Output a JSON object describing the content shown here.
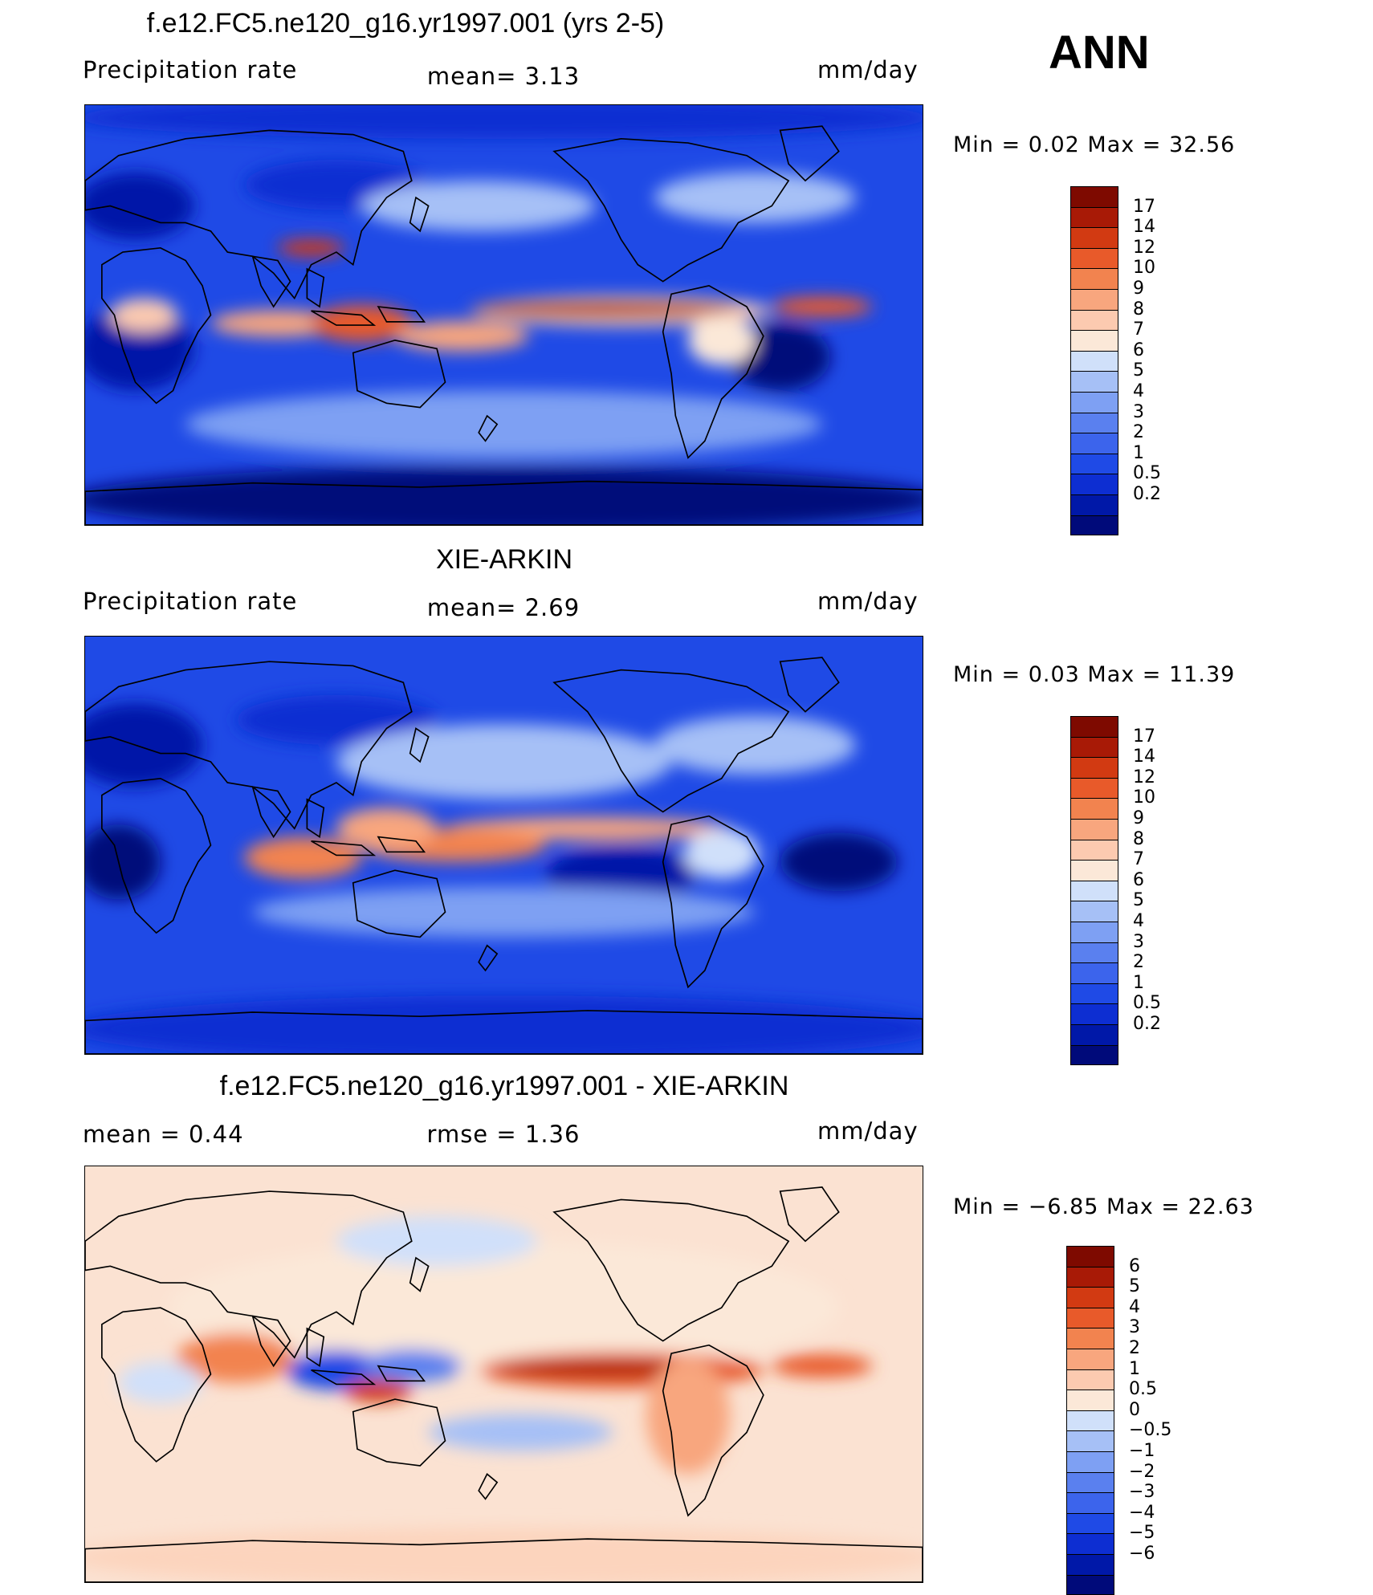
{
  "season": "ANN",
  "colors": {
    "abs": [
      "#000a7a",
      "#0018a8",
      "#0d2ed2",
      "#1f4ae6",
      "#3c64ec",
      "#5a80ef",
      "#7ea0f3",
      "#a6c0f6",
      "#d0e0fa",
      "#fbe8d8",
      "#fccab0",
      "#f8a67e",
      "#f2834f",
      "#e85a2a",
      "#d23a12",
      "#a81a06",
      "#7e0a00"
    ],
    "diff": [
      "#000a7a",
      "#0018a8",
      "#0d2ed2",
      "#1f4ae6",
      "#3c64ec",
      "#5a80ef",
      "#7ea0f3",
      "#a6c0f6",
      "#d0e0fa",
      "#fbe8d8",
      "#fccab0",
      "#f8a67e",
      "#f2834f",
      "#e85a2a",
      "#d23a12",
      "#a81a06",
      "#7e0a00"
    ]
  },
  "panels": [
    {
      "title": "f.e12.FC5.ne120_g16.yr1997.001 (yrs 2-5)",
      "left_label": "Precipitation  rate",
      "mid_label": "mean=    3.13",
      "units": "mm/day",
      "minmax": "Min  =     0.02  Max  =     32.56",
      "colorbar": "abs"
    },
    {
      "title": "XIE-ARKIN",
      "left_label": "Precipitation  rate",
      "mid_label": "mean=    2.69",
      "units": "mm/day",
      "minmax": "Min  =     0.03  Max  =     11.39",
      "colorbar": "abs"
    },
    {
      "title": "f.e12.FC5.ne120_g16.yr1997.001 - XIE-ARKIN",
      "left_label": "mean  =     0.44",
      "mid_label": "rmse  =     1.36",
      "units": "mm/day",
      "minmax": "Min  =   −6.85  Max  =     22.63",
      "colorbar": "diff"
    }
  ],
  "chart_data": [
    {
      "type": "heatmap",
      "title": "f.e12.FC5.ne120_g16.yr1997.001 (yrs 2-5)",
      "variable": "Precipitation rate",
      "units": "mm/day",
      "mean": 3.13,
      "min": 0.02,
      "max": 32.56,
      "contour_levels": [
        "0.2",
        "0.5",
        "1",
        "2",
        "3",
        "4",
        "5",
        "6",
        "7",
        "8",
        "9",
        "10",
        "12",
        "14",
        "17"
      ]
    },
    {
      "type": "heatmap",
      "title": "XIE-ARKIN",
      "variable": "Precipitation rate",
      "units": "mm/day",
      "mean": 2.69,
      "min": 0.03,
      "max": 11.39,
      "contour_levels": [
        "0.2",
        "0.5",
        "1",
        "2",
        "3",
        "4",
        "5",
        "6",
        "7",
        "8",
        "9",
        "10",
        "12",
        "14",
        "17"
      ]
    },
    {
      "type": "heatmap",
      "title": "f.e12.FC5.ne120_g16.yr1997.001 - XIE-ARKIN",
      "units": "mm/day",
      "mean": 0.44,
      "rmse": 1.36,
      "min": -6.85,
      "max": 22.63,
      "contour_levels": [
        "−6",
        "−5",
        "−4",
        "−3",
        "−2",
        "−1",
        "−0.5",
        "0",
        "0.5",
        "1",
        "2",
        "3",
        "4",
        "5",
        "6"
      ]
    }
  ]
}
